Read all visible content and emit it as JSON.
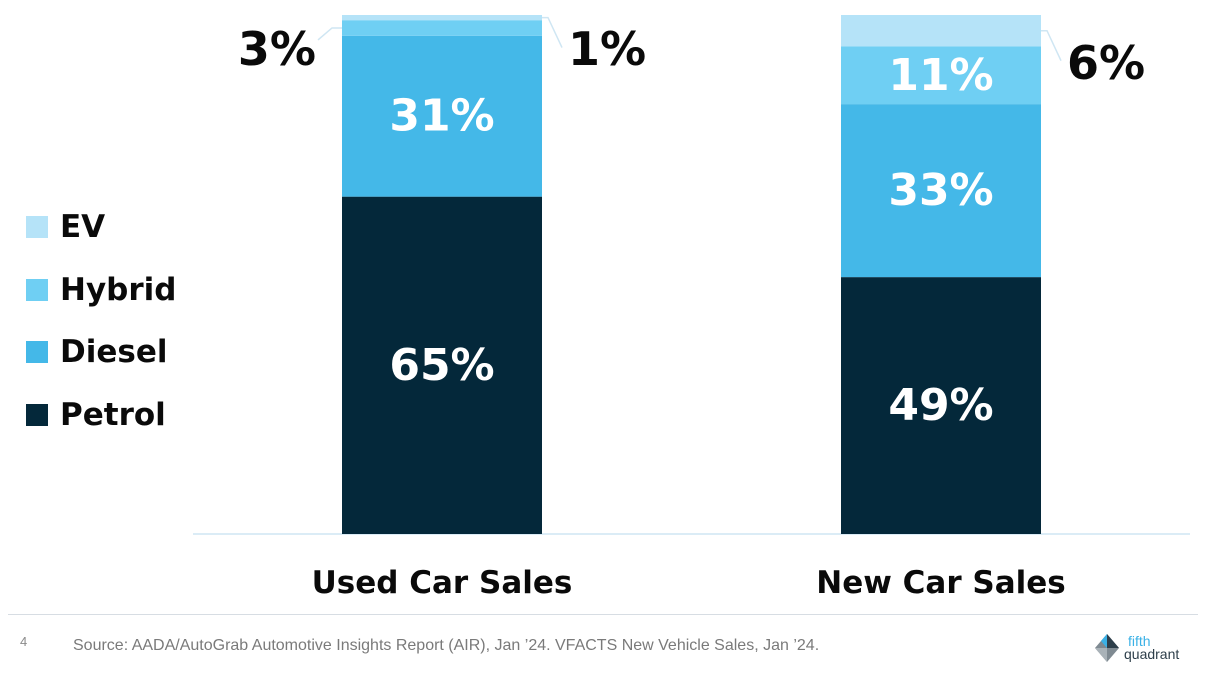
{
  "chart_data": {
    "type": "bar",
    "stacked": true,
    "categories": [
      "Used Car Sales",
      "New Car Sales"
    ],
    "series": [
      {
        "name": "Petrol",
        "values": [
          65,
          49
        ],
        "labels": [
          "65%",
          "49%"
        ],
        "color": "#04283a"
      },
      {
        "name": "Diesel",
        "values": [
          31,
          33
        ],
        "labels": [
          "31%",
          "33%"
        ],
        "color": "#44b8e8"
      },
      {
        "name": "Hybrid",
        "values": [
          3,
          11
        ],
        "labels": [
          "3%",
          "11%"
        ],
        "color": "#6fcff3"
      },
      {
        "name": "EV",
        "values": [
          1,
          6
        ],
        "labels": [
          "1%",
          "6%"
        ],
        "color": "#b5e3f8"
      }
    ],
    "legend_order": [
      "EV",
      "Hybrid",
      "Diesel",
      "Petrol"
    ],
    "legend_position": "left",
    "grid": false
  },
  "legend": {
    "ev": "EV",
    "hybrid": "Hybrid",
    "diesel": "Diesel",
    "petrol": "Petrol"
  },
  "footer": {
    "page_number": "4",
    "source": "Source: AADA/AutoGrab Automotive Insights Report (AIR), Jan ’24. VFACTS New Vehicle Sales, Jan ’24.",
    "logo_line1": "fifth",
    "logo_line2": "quadrant"
  },
  "colors": {
    "axis_line": "#cfe6f3",
    "bar_label_inside": "#ffffff",
    "bar_label_outside": "#0a0a0a"
  }
}
